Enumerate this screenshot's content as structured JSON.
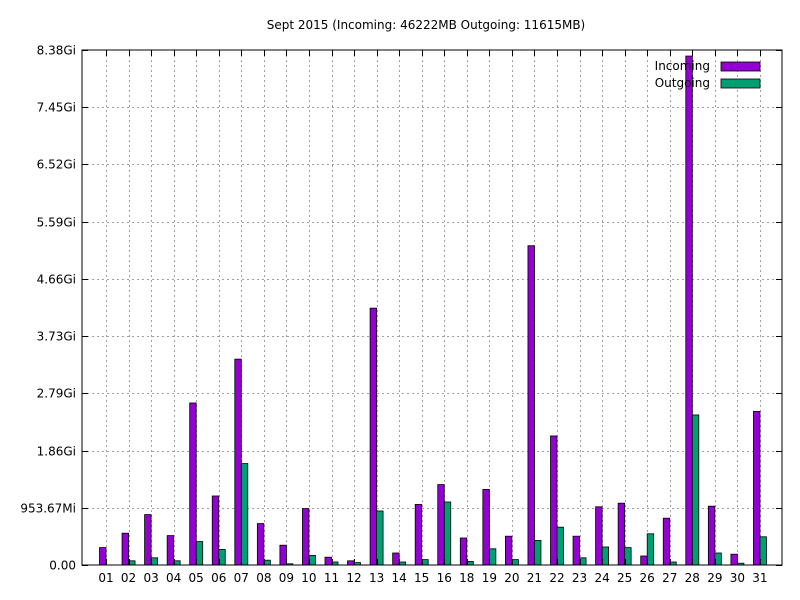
{
  "chart_data": {
    "type": "bar",
    "title": "Sept 2015 (Incoming: 46222MB Outgoing: 11615MB)",
    "xlabel": "",
    "ylabel": "",
    "unit": "MB",
    "ylim": [
      0,
      8580.91
    ],
    "yticks": [
      {
        "value": 0,
        "label": "0.00"
      },
      {
        "value": 953.67,
        "label": "953.67Mi"
      },
      {
        "value": 1907.35,
        "label": "1.86Gi"
      },
      {
        "value": 2861.02,
        "label": "2.79Gi"
      },
      {
        "value": 3814.7,
        "label": "3.73Gi"
      },
      {
        "value": 4768.37,
        "label": "4.66Gi"
      },
      {
        "value": 5722.05,
        "label": "5.59Gi"
      },
      {
        "value": 6675.72,
        "label": "6.52Gi"
      },
      {
        "value": 7629.39,
        "label": "7.45Gi"
      },
      {
        "value": 8583.07,
        "label": "8.38Gi"
      }
    ],
    "grid": true,
    "legend_position": "top-right",
    "categories": [
      "01",
      "02",
      "03",
      "04",
      "05",
      "06",
      "07",
      "08",
      "09",
      "10",
      "11",
      "12",
      "13",
      "14",
      "15",
      "16",
      "18",
      "19",
      "20",
      "21",
      "22",
      "23",
      "24",
      "25",
      "26",
      "27",
      "28",
      "29",
      "30",
      "31"
    ],
    "series": [
      {
        "name": "Incoming",
        "color": "#9400d3",
        "values": [
          290,
          530,
          840,
          490,
          2700,
          1150,
          3430,
          690,
          330,
          940,
          130,
          70,
          4280,
          200,
          1010,
          1340,
          450,
          1260,
          480,
          5320,
          2150,
          480,
          970,
          1030,
          150,
          780,
          8480,
          980,
          180,
          2560
        ]
      },
      {
        "name": "Outgoing",
        "color": "#009e73",
        "values": [
          0,
          70,
          120,
          70,
          390,
          260,
          1690,
          80,
          20,
          160,
          50,
          40,
          900,
          50,
          90,
          1050,
          60,
          270,
          90,
          410,
          630,
          120,
          300,
          290,
          520,
          50,
          2500,
          200,
          30,
          470
        ]
      }
    ]
  }
}
